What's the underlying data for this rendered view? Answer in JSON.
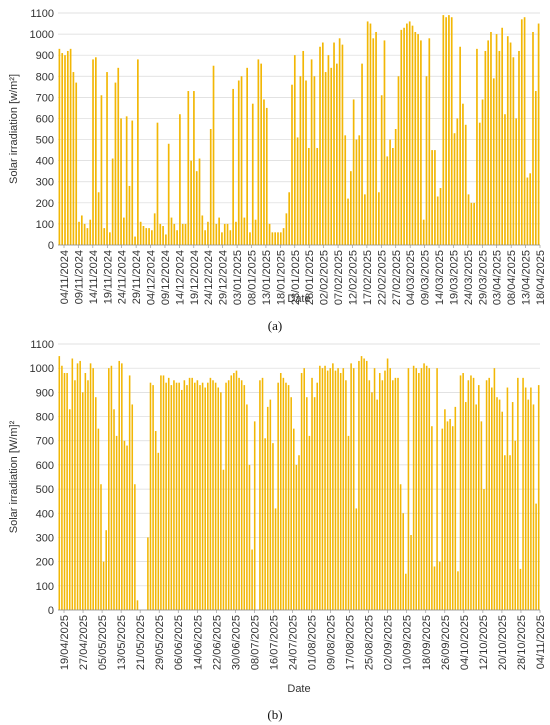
{
  "colors": {
    "bar": "#F2B705",
    "grid": "#D9D9D9",
    "axis": "#8C8C8C",
    "text": "#333333"
  },
  "captions": {
    "a": "(a)",
    "b": "(b)"
  },
  "chart_data": [
    {
      "type": "bar",
      "title": "",
      "xlabel": "Date",
      "ylabel": "Solar irradiation  [w/m²]",
      "ylim": [
        0,
        1100
      ],
      "yticks": [
        0,
        100,
        200,
        300,
        400,
        500,
        600,
        700,
        800,
        900,
        1000,
        1100
      ],
      "grid": true,
      "x_tick_labels": [
        "04/11/2024",
        "09/11/2024",
        "14/11/2024",
        "19/11/2024",
        "24/11/2024",
        "29/11/2024",
        "04/12/2024",
        "09/12/2024",
        "14/12/2024",
        "19/12/2024",
        "24/12/2024",
        "29/12/2024",
        "03/01/2025",
        "08/01/2025",
        "13/01/2025",
        "18/01/2025",
        "23/01/2025",
        "28/01/2025",
        "02/02/2025",
        "07/02/2025",
        "12/02/2025",
        "17/02/2025",
        "22/02/2025",
        "27/02/2025",
        "04/03/2025",
        "09/03/2025",
        "14/03/2025",
        "19/03/2025",
        "24/03/2025",
        "29/03/2025",
        "03/04/2025",
        "08/04/2025",
        "13/04/2025",
        "18/04/2025"
      ],
      "values": [
        930,
        910,
        900,
        920,
        930,
        820,
        770,
        110,
        140,
        100,
        80,
        120,
        880,
        890,
        250,
        710,
        80,
        820,
        60,
        410,
        770,
        840,
        600,
        130,
        610,
        280,
        590,
        40,
        880,
        110,
        90,
        80,
        80,
        70,
        150,
        580,
        100,
        90,
        50,
        480,
        130,
        100,
        70,
        620,
        100,
        100,
        730,
        400,
        730,
        350,
        410,
        140,
        70,
        110,
        550,
        850,
        100,
        130,
        60,
        100,
        100,
        70,
        740,
        110,
        780,
        800,
        130,
        840,
        60,
        670,
        120,
        880,
        860,
        690,
        650,
        100,
        60,
        60,
        60,
        60,
        80,
        150,
        250,
        760,
        900,
        510,
        800,
        920,
        780,
        460,
        880,
        800,
        460,
        940,
        960,
        820,
        900,
        840,
        960,
        860,
        980,
        950,
        520,
        220,
        350,
        690,
        500,
        520,
        860,
        240,
        1060,
        1050,
        980,
        1010,
        250,
        710,
        970,
        420,
        500,
        460,
        550,
        800,
        1020,
        1030,
        1050,
        1060,
        1040,
        1010,
        1000,
        970,
        120,
        800,
        980,
        450,
        450,
        230,
        270,
        1090,
        1080,
        1090,
        1080,
        530,
        600,
        940,
        670,
        570,
        240,
        200,
        200,
        930,
        580,
        690,
        920,
        970,
        1010,
        790,
        1000,
        920,
        1030,
        620,
        990,
        960,
        890,
        600,
        920,
        1070,
        1080,
        320,
        340,
        1010,
        730,
        1050
      ]
    },
    {
      "type": "bar",
      "title": "",
      "xlabel": "Date",
      "ylabel": "Solar irradiation  [W/m]²",
      "ylim": [
        0,
        1100
      ],
      "yticks": [
        0,
        100,
        200,
        300,
        400,
        500,
        600,
        700,
        800,
        900,
        1000,
        1100
      ],
      "grid": true,
      "x_tick_labels": [
        "19/04/2025",
        "27/04/2025",
        "05/05/2025",
        "13/05/2025",
        "21/05/2025",
        "29/05/2025",
        "06/06/2025",
        "14/06/2025",
        "22/06/2025",
        "30/06/2025",
        "08/07/2025",
        "16/07/2025",
        "24/07/2025",
        "01/08/2025",
        "09/08/2025",
        "17/08/2025",
        "25/08/2025",
        "02/09/2025",
        "10/09/2025",
        "18/09/2025",
        "26/09/2025",
        "04/10/2025",
        "12/10/2025",
        "20/10/2025",
        "28/10/2025",
        "04/11/2025"
      ],
      "values": [
        1050,
        1010,
        980,
        980,
        830,
        1040,
        950,
        1020,
        1030,
        900,
        980,
        950,
        1020,
        1000,
        880,
        750,
        520,
        200,
        330,
        1000,
        1010,
        830,
        720,
        1030,
        1020,
        700,
        680,
        970,
        850,
        520,
        40,
        0,
        0,
        0,
        300,
        940,
        930,
        740,
        650,
        970,
        970,
        940,
        960,
        930,
        950,
        940,
        940,
        910,
        950,
        930,
        960,
        960,
        940,
        950,
        930,
        940,
        920,
        940,
        960,
        950,
        940,
        920,
        900,
        580,
        940,
        950,
        970,
        980,
        990,
        960,
        950,
        930,
        850,
        600,
        250,
        780,
        0,
        950,
        960,
        710,
        840,
        870,
        690,
        420,
        940,
        980,
        960,
        940,
        930,
        880,
        750,
        600,
        640,
        980,
        1000,
        880,
        720,
        960,
        880,
        940,
        1010,
        1000,
        1010,
        990,
        1000,
        1020,
        990,
        1000,
        980,
        1000,
        950,
        720,
        1020,
        1000,
        420,
        1030,
        1050,
        1040,
        1030,
        950,
        900,
        1000,
        870,
        980,
        950,
        990,
        1040,
        1000,
        950,
        960,
        960,
        520,
        400,
        150,
        1000,
        310,
        1010,
        1000,
        980,
        1000,
        1020,
        1010,
        1000,
        760,
        180,
        1000,
        200,
        750,
        830,
        780,
        790,
        760,
        840,
        160,
        970,
        980,
        860,
        950,
        970,
        960,
        850,
        930,
        780,
        500,
        950,
        960,
        920,
        1000,
        880,
        870,
        820,
        640,
        920,
        640,
        860,
        700,
        960,
        170,
        960,
        920,
        870,
        920,
        850,
        440,
        930
      ]
    }
  ]
}
